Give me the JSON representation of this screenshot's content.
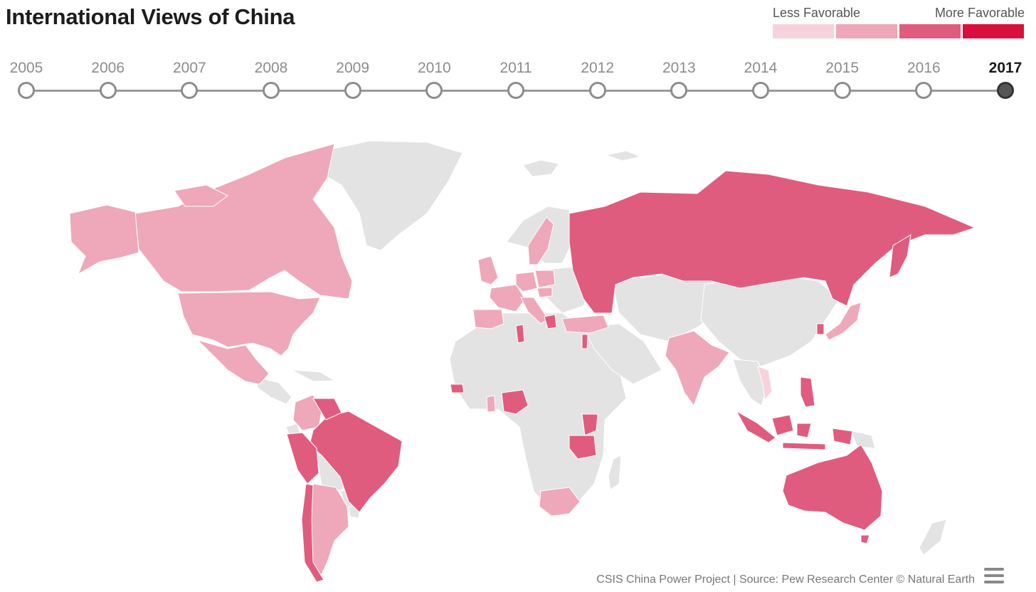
{
  "title": "International Views of China",
  "legend": {
    "less_label": "Less Favorable",
    "more_label": "More Favorable",
    "colors": [
      "#f6d3dc",
      "#eea8b9",
      "#e05c7f",
      "#d7103e"
    ]
  },
  "timeline": {
    "years": [
      "2005",
      "2006",
      "2007",
      "2008",
      "2009",
      "2010",
      "2011",
      "2012",
      "2013",
      "2014",
      "2015",
      "2016",
      "2017"
    ],
    "selected": "2017"
  },
  "map": {
    "no_data_color": "#e3e3e3",
    "countries": {
      "less_favorable": [
        "Canada",
        "United States",
        "Mexico",
        "Colombia",
        "Argentina",
        "United Kingdom",
        "France",
        "Spain",
        "Germany",
        "Poland",
        "Italy",
        "Sweden",
        "Hungary",
        "Turkey",
        "India",
        "South Africa",
        "Japan",
        "Vietnam",
        "Ghana"
      ],
      "more_favorable": [
        "Russia",
        "Brazil",
        "Peru",
        "Venezuela",
        "Chile",
        "Greece",
        "Tunisia",
        "Lebanon",
        "Senegal",
        "Nigeria",
        "Kenya",
        "Tanzania",
        "Indonesia",
        "Philippines",
        "South Korea",
        "Australia"
      ]
    }
  },
  "footer": {
    "credit": "CSIS China Power Project | Source: Pew Research Center © Natural Earth"
  },
  "icons": {
    "menu": "hamburger-menu-icon"
  }
}
